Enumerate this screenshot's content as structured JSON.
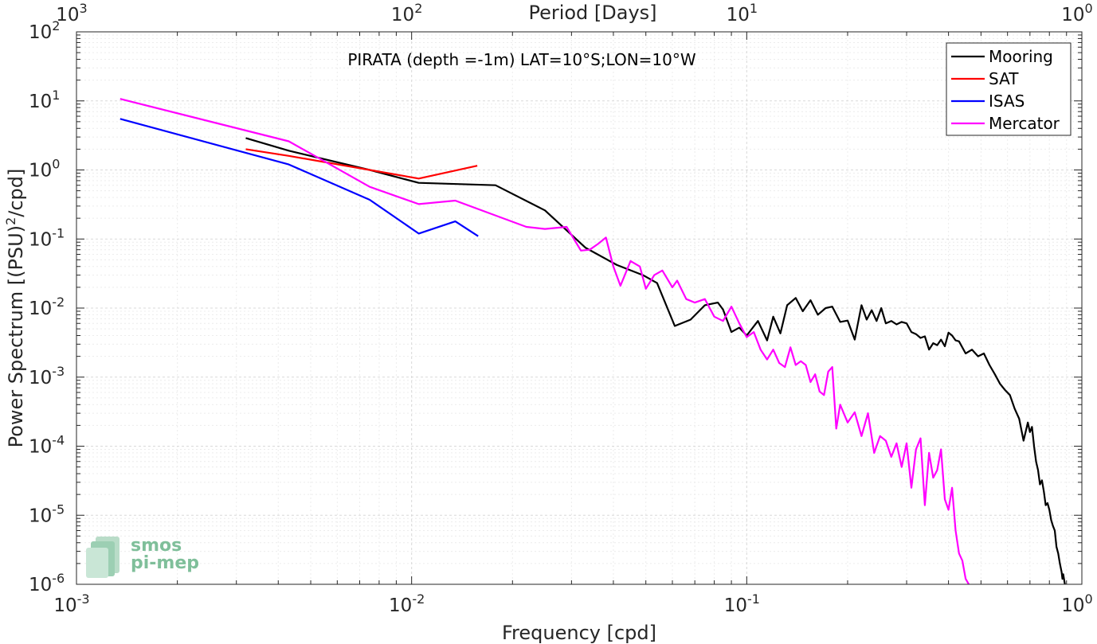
{
  "chart_data": {
    "type": "line",
    "title": "PIRATA (depth =-1m) LAT=10°S;LON=10°W",
    "xlabel": "Frequency [cpd]",
    "ylabel": "Power Spectrum [(PSU)",
    "ylabel_sup": "2",
    "ylabel_tail": "/cpd]",
    "top_xlabel": "Period [Days]",
    "x_scale": "log",
    "y_scale": "log",
    "xlim": [
      0.001,
      1
    ],
    "ylim": [
      1e-06,
      100
    ],
    "grid": true,
    "legend_position": "top-right",
    "x_ticks": [
      {
        "value": 0.001,
        "base": "10",
        "exp": "-3"
      },
      {
        "value": 0.01,
        "base": "10",
        "exp": "-2"
      },
      {
        "value": 0.1,
        "base": "10",
        "exp": "-1"
      },
      {
        "value": 1,
        "base": "10",
        "exp": "0"
      }
    ],
    "y_ticks": [
      {
        "value": 1e-06,
        "base": "10",
        "exp": "-6"
      },
      {
        "value": 1e-05,
        "base": "10",
        "exp": "-5"
      },
      {
        "value": 0.0001,
        "base": "10",
        "exp": "-4"
      },
      {
        "value": 0.001,
        "base": "10",
        "exp": "-3"
      },
      {
        "value": 0.01,
        "base": "10",
        "exp": "-2"
      },
      {
        "value": 0.1,
        "base": "10",
        "exp": "-1"
      },
      {
        "value": 1,
        "base": "10",
        "exp": "0"
      },
      {
        "value": 10,
        "base": "10",
        "exp": "1"
      },
      {
        "value": 100,
        "base": "10",
        "exp": "2"
      }
    ],
    "top_ticks": [
      {
        "value": 0.001,
        "base": "10",
        "exp": "3"
      },
      {
        "value": 0.01,
        "base": "10",
        "exp": "2"
      },
      {
        "value": 0.1,
        "base": "10",
        "exp": "1"
      },
      {
        "value": 1,
        "base": "10",
        "exp": "0"
      }
    ],
    "series": [
      {
        "name": "Mooring",
        "color": "#000000",
        "x": [
          0.0032,
          0.0043,
          0.0075,
          0.0105,
          0.0178,
          0.025,
          0.033,
          0.041,
          0.049,
          0.054,
          0.061,
          0.068,
          0.075,
          0.082,
          0.085,
          0.09,
          0.095,
          0.1,
          0.108,
          0.115,
          0.12,
          0.126,
          0.132,
          0.14,
          0.147,
          0.155,
          0.163,
          0.172,
          0.18,
          0.19,
          0.2,
          0.21,
          0.22,
          0.228,
          0.236,
          0.244,
          0.252,
          0.26,
          0.27,
          0.28,
          0.29,
          0.3,
          0.31,
          0.32,
          0.33,
          0.34,
          0.35,
          0.36,
          0.37,
          0.38,
          0.39,
          0.4,
          0.41,
          0.42,
          0.43,
          0.45,
          0.47,
          0.49,
          0.51,
          0.53,
          0.55,
          0.57,
          0.59,
          0.61,
          0.63,
          0.65,
          0.67,
          0.69,
          0.7,
          0.71,
          0.72,
          0.73,
          0.74,
          0.75,
          0.76,
          0.77,
          0.78,
          0.79,
          0.8,
          0.81,
          0.82,
          0.83,
          0.84,
          0.85,
          0.86,
          0.87,
          0.875,
          0.88,
          0.89
        ],
        "values": [
          2.9,
          1.9,
          1.0,
          0.65,
          0.6,
          0.26,
          0.075,
          0.042,
          0.03,
          0.023,
          0.0055,
          0.0068,
          0.011,
          0.012,
          0.0095,
          0.0045,
          0.0052,
          0.004,
          0.0065,
          0.0034,
          0.0075,
          0.0043,
          0.011,
          0.014,
          0.009,
          0.013,
          0.008,
          0.01,
          0.0105,
          0.0063,
          0.0066,
          0.0035,
          0.011,
          0.0068,
          0.0093,
          0.0065,
          0.01,
          0.006,
          0.0065,
          0.0058,
          0.0063,
          0.006,
          0.0045,
          0.0042,
          0.0037,
          0.0039,
          0.0025,
          0.0031,
          0.0029,
          0.0035,
          0.0028,
          0.0044,
          0.004,
          0.0034,
          0.0033,
          0.0022,
          0.0025,
          0.002,
          0.0022,
          0.0015,
          0.0011,
          0.0008,
          0.00065,
          0.00055,
          0.00035,
          0.00025,
          0.00012,
          0.00022,
          0.00016,
          0.00019,
          0.0001,
          6e-05,
          4.5e-05,
          2.8e-05,
          3.2e-05,
          2.2e-05,
          1.4e-05,
          1.5e-05,
          1.2e-05,
          8.5e-06,
          7e-06,
          6e-06,
          3.5e-06,
          2.8e-06,
          2e-06,
          1.5e-06,
          1.2e-06,
          1.4e-06,
          1e-06
        ]
      },
      {
        "name": "SAT",
        "color": "#ff0000",
        "x": [
          0.0032,
          0.0043,
          0.0075,
          0.0105,
          0.0157
        ],
        "values": [
          2.0,
          1.6,
          1.0,
          0.75,
          1.15
        ]
      },
      {
        "name": "ISAS",
        "color": "#0000ff",
        "x": [
          0.00135,
          0.0043,
          0.0075,
          0.0105,
          0.0135,
          0.0158
        ],
        "values": [
          5.5,
          1.2,
          0.37,
          0.12,
          0.18,
          0.11
        ]
      },
      {
        "name": "Mercator",
        "color": "#ff00ff",
        "x": [
          0.00135,
          0.0043,
          0.0075,
          0.0105,
          0.0135,
          0.022,
          0.025,
          0.029,
          0.032,
          0.034,
          0.036,
          0.038,
          0.04,
          0.042,
          0.045,
          0.048,
          0.05,
          0.053,
          0.056,
          0.06,
          0.062,
          0.066,
          0.07,
          0.075,
          0.08,
          0.085,
          0.09,
          0.095,
          0.1,
          0.105,
          0.11,
          0.115,
          0.12,
          0.125,
          0.13,
          0.135,
          0.14,
          0.145,
          0.15,
          0.155,
          0.16,
          0.165,
          0.17,
          0.175,
          0.18,
          0.185,
          0.19,
          0.2,
          0.21,
          0.22,
          0.23,
          0.24,
          0.25,
          0.26,
          0.27,
          0.28,
          0.29,
          0.3,
          0.31,
          0.32,
          0.33,
          0.34,
          0.35,
          0.36,
          0.37,
          0.38,
          0.39,
          0.4,
          0.41,
          0.42,
          0.43,
          0.44,
          0.45,
          0.46
        ],
        "values": [
          10.7,
          2.6,
          0.57,
          0.32,
          0.36,
          0.15,
          0.14,
          0.15,
          0.068,
          0.07,
          0.085,
          0.105,
          0.04,
          0.021,
          0.048,
          0.04,
          0.019,
          0.03,
          0.035,
          0.02,
          0.025,
          0.0135,
          0.012,
          0.0135,
          0.0075,
          0.0065,
          0.0105,
          0.006,
          0.0038,
          0.0045,
          0.0025,
          0.0018,
          0.0025,
          0.0016,
          0.0014,
          0.0027,
          0.0015,
          0.0017,
          0.0015,
          0.00085,
          0.0011,
          0.00062,
          0.00055,
          0.0012,
          0.0014,
          0.00018,
          0.0004,
          0.00022,
          0.00031,
          0.00014,
          0.0003,
          8e-05,
          0.00014,
          0.00012,
          7e-05,
          0.00011,
          5e-05,
          0.00011,
          2.5e-05,
          9e-05,
          0.00013,
          1.4e-05,
          8e-05,
          3.5e-05,
          4.5e-05,
          9e-05,
          1.7e-05,
          1.2e-05,
          2.5e-05,
          6e-06,
          2.8e-06,
          2.2e-06,
          1.2e-06,
          1e-06
        ]
      }
    ]
  },
  "logo": {
    "line1": "smos",
    "line2": "pi-mep"
  }
}
